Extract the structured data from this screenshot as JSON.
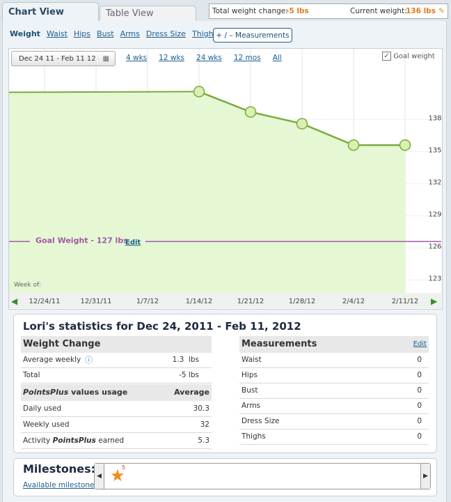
{
  "tabs": [
    "Chart View",
    "Table View"
  ],
  "summary": {
    "total_label": "Total weight change:",
    "total_value": "-5 lbs",
    "current_label": "Current weight:",
    "current_value": "136 lbs"
  },
  "metrics": [
    "Weight",
    "Waist",
    "Hips",
    "Bust",
    "Arms",
    "Dress Size",
    "Thighs"
  ],
  "measurements_button": "+ / – Measurements",
  "range": {
    "date": "Dec 24 11 - Feb 11 12",
    "options": [
      "4 wks",
      "12 wks",
      "24 wks",
      "12 mos",
      "All"
    ]
  },
  "goal_checkbox": "Goal weight",
  "chart_data": {
    "type": "line",
    "categories": [
      "12/24/11",
      "12/31/11",
      "1/7/12",
      "1/14/12",
      "1/21/12",
      "1/28/12",
      "2/4/12",
      "2/11/12"
    ],
    "values": [
      null,
      null,
      null,
      140.6,
      138.7,
      137.6,
      135.6,
      135.6
    ],
    "color": "#7aab3e",
    "x_label": "Week of:",
    "goal": {
      "label": "Goal Weight - 127 lbs",
      "value": 126.6,
      "edit": "Edit",
      "color": "#a05aa5"
    },
    "ylim": [
      121.8,
      144.6
    ],
    "yticks": [
      123,
      126,
      129,
      132,
      135,
      138
    ],
    "grid": true
  },
  "statistics": {
    "title": "Lori's statistics for Dec 24, 2011 - Feb 11, 2012",
    "weight_change": {
      "heading": "Weight Change",
      "rows": [
        [
          "Average weekly",
          "1.3  lbs"
        ],
        [
          "Total",
          "-5 lbs"
        ]
      ]
    },
    "points": {
      "heading_em": "PointsPlus",
      "heading_rest": " values usage",
      "column": "Average",
      "rows": [
        {
          "label": "Daily used",
          "value": 30.3
        },
        {
          "label": "Weekly used",
          "value": 32
        },
        {
          "label": "Activity ",
          "label_em": "PointsPlus",
          "label_end": " earned",
          "value": 5.3
        }
      ]
    },
    "measurements": {
      "heading": "Measurements",
      "edit": "Edit",
      "rows": [
        [
          "Waist",
          0
        ],
        [
          "Hips",
          0
        ],
        [
          "Bust",
          0
        ],
        [
          "Arms",
          0
        ],
        [
          "Dress Size",
          0
        ],
        [
          "Thighs",
          0
        ]
      ]
    }
  },
  "milestones": {
    "title": "Milestones:",
    "link": "Available milestones",
    "badge": "5"
  }
}
